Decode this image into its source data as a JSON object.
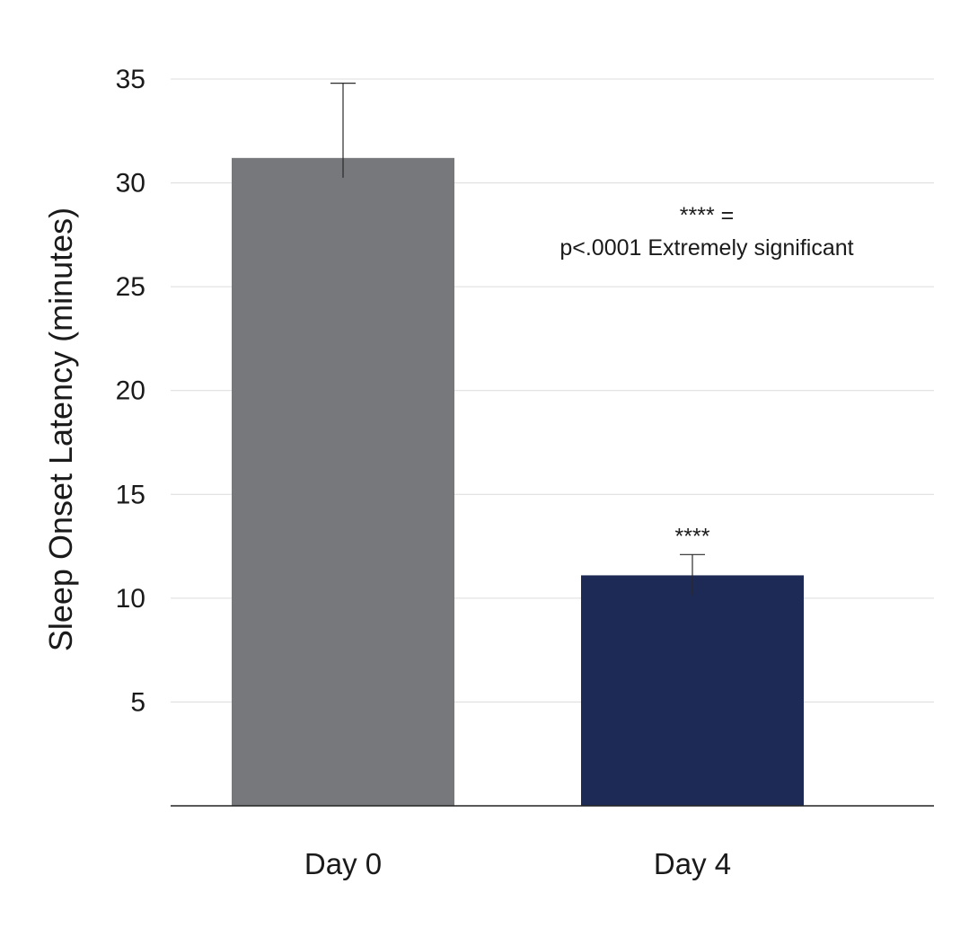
{
  "chart_data": {
    "type": "bar",
    "title": "",
    "xlabel": "",
    "ylabel": "Sleep Onset Latency (minutes)",
    "categories": [
      "Day 0",
      "Day 4"
    ],
    "values": [
      31.2,
      11.1
    ],
    "error_bars": [
      3.6,
      1.0
    ],
    "bar_colors": [
      "#77787b",
      "#1c2a55"
    ],
    "ylim": [
      0,
      35
    ],
    "yticks": [
      5,
      10,
      15,
      20,
      25,
      30,
      35
    ],
    "ytick_labels": [
      "5",
      "10",
      "15",
      "20",
      "25",
      "30",
      "35"
    ],
    "grid": true,
    "grid_color": "#dcdcdc",
    "annotations": {
      "significance_marker": {
        "category": "Day 4",
        "text": "****"
      },
      "legend_note_line1": "**** =",
      "legend_note_line2": "p<.0001 Extremely significant"
    }
  }
}
